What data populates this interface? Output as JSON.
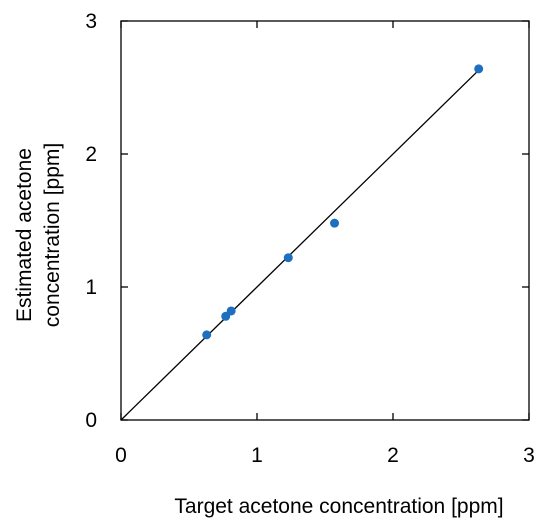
{
  "chart_data": {
    "type": "scatter",
    "title": "",
    "xlabel": "Target acetone concentration [ppm]",
    "ylabel_lines": [
      "Estimated acetone",
      "concentration [ppm]"
    ],
    "xlim": [
      0,
      3
    ],
    "ylim": [
      0,
      3
    ],
    "x_ticks": [
      0,
      1,
      2,
      3
    ],
    "y_ticks": [
      0,
      1,
      2,
      3
    ],
    "x_tick_labels": [
      "0",
      "1",
      "2",
      "3"
    ],
    "y_tick_labels": [
      "0",
      "1",
      "2",
      "3"
    ],
    "grid": false,
    "legend": "none",
    "series": [
      {
        "points": [
          {
            "x": 0.63,
            "y": 0.64
          },
          {
            "x": 0.77,
            "y": 0.78
          },
          {
            "x": 0.81,
            "y": 0.82
          },
          {
            "x": 1.23,
            "y": 1.22
          },
          {
            "x": 1.57,
            "y": 1.48
          },
          {
            "x": 2.63,
            "y": 2.64
          }
        ],
        "color": "#1f6fbf"
      }
    ],
    "reference_line": {
      "from": [
        0,
        0
      ],
      "to": [
        2.63,
        2.63
      ],
      "color": "#000000"
    }
  }
}
